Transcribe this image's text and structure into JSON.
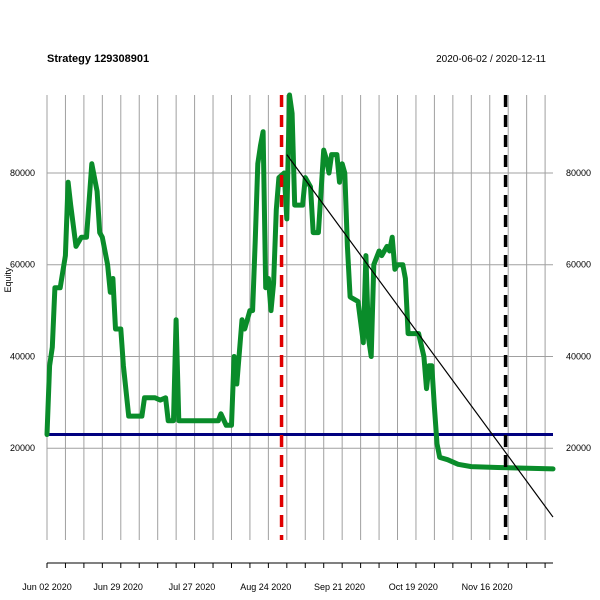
{
  "chart_data": {
    "type": "line",
    "title": "Strategy 129308901",
    "date_range_label": "2020-06-02 / 2020-12-11",
    "ylabel": "Equity",
    "xlabel": "",
    "x_range": [
      "2020-06-02",
      "2020-12-11"
    ],
    "ylim": [
      0,
      97000
    ],
    "y_ticks": [
      20000,
      40000,
      60000,
      80000
    ],
    "x_tick_labels": [
      {
        "date": "2020-06-02",
        "label": "Jun 02 2020"
      },
      {
        "date": "2020-06-29",
        "label": "Jun 29 2020"
      },
      {
        "date": "2020-07-27",
        "label": "Jul 27 2020"
      },
      {
        "date": "2020-08-24",
        "label": "Aug 24 2020"
      },
      {
        "date": "2020-09-21",
        "label": "Sep 21 2020"
      },
      {
        "date": "2020-10-19",
        "label": "Oct 19 2020"
      },
      {
        "date": "2020-11-16",
        "label": "Nov 16 2020"
      }
    ],
    "grid": true,
    "colors": {
      "equity": "#0a8c2a",
      "baseline": "#00007f",
      "trend": "#000000",
      "marker_start": "#e00000",
      "marker_end": "#000000",
      "grid": "#a0a0a0"
    },
    "baseline_value": 23000,
    "trend_line": [
      {
        "date": "2020-09-01",
        "value": 84000
      },
      {
        "date": "2020-12-11",
        "value": 5000
      }
    ],
    "vertical_markers": [
      {
        "date": "2020-08-30",
        "style": "dashed",
        "color": "#e00000"
      },
      {
        "date": "2020-11-23",
        "style": "dashed",
        "color": "#000000"
      }
    ],
    "series": [
      {
        "values": [
          [
            "2020-06-02",
            23000
          ],
          [
            "2020-06-03",
            38000
          ],
          [
            "2020-06-04",
            42000
          ],
          [
            "2020-06-05",
            55000
          ],
          [
            "2020-06-07",
            55000
          ],
          [
            "2020-06-09",
            62000
          ],
          [
            "2020-06-10",
            78000
          ],
          [
            "2020-06-11",
            73000
          ],
          [
            "2020-06-13",
            64000
          ],
          [
            "2020-06-15",
            66000
          ],
          [
            "2020-06-17",
            66000
          ],
          [
            "2020-06-19",
            82000
          ],
          [
            "2020-06-21",
            76000
          ],
          [
            "2020-06-22",
            67000
          ],
          [
            "2020-06-23",
            66000
          ],
          [
            "2020-06-25",
            60000
          ],
          [
            "2020-06-26",
            54000
          ],
          [
            "2020-06-27",
            57000
          ],
          [
            "2020-06-28",
            46000
          ],
          [
            "2020-06-30",
            46000
          ],
          [
            "2020-07-01",
            38000
          ],
          [
            "2020-07-03",
            27000
          ],
          [
            "2020-07-08",
            27000
          ],
          [
            "2020-07-09",
            31000
          ],
          [
            "2020-07-13",
            31000
          ],
          [
            "2020-07-15",
            30500
          ],
          [
            "2020-07-17",
            31000
          ],
          [
            "2020-07-18",
            26000
          ],
          [
            "2020-07-20",
            26000
          ],
          [
            "2020-07-21",
            48000
          ],
          [
            "2020-07-22",
            26000
          ],
          [
            "2020-07-30",
            26000
          ],
          [
            "2020-08-06",
            26000
          ],
          [
            "2020-08-07",
            27500
          ],
          [
            "2020-08-09",
            25000
          ],
          [
            "2020-08-11",
            25000
          ],
          [
            "2020-08-12",
            40000
          ],
          [
            "2020-08-13",
            34000
          ],
          [
            "2020-08-15",
            48000
          ],
          [
            "2020-08-16",
            46000
          ],
          [
            "2020-08-18",
            50000
          ],
          [
            "2020-08-19",
            50000
          ],
          [
            "2020-08-20",
            65000
          ],
          [
            "2020-08-21",
            82000
          ],
          [
            "2020-08-22",
            86000
          ],
          [
            "2020-08-23",
            89000
          ],
          [
            "2020-08-24",
            55000
          ],
          [
            "2020-08-25",
            57000
          ],
          [
            "2020-08-26",
            50000
          ],
          [
            "2020-08-27",
            56000
          ],
          [
            "2020-08-28",
            72000
          ],
          [
            "2020-08-29",
            79000
          ],
          [
            "2020-08-31",
            80000
          ],
          [
            "2020-09-01",
            70000
          ],
          [
            "2020-09-02",
            97000
          ],
          [
            "2020-09-03",
            93000
          ],
          [
            "2020-09-04",
            73000
          ],
          [
            "2020-09-07",
            73000
          ],
          [
            "2020-09-08",
            79000
          ],
          [
            "2020-09-10",
            77000
          ],
          [
            "2020-09-11",
            67000
          ],
          [
            "2020-09-13",
            67000
          ],
          [
            "2020-09-15",
            85000
          ],
          [
            "2020-09-16",
            83000
          ],
          [
            "2020-09-17",
            80000
          ],
          [
            "2020-09-18",
            84000
          ],
          [
            "2020-09-20",
            84000
          ],
          [
            "2020-09-21",
            78000
          ],
          [
            "2020-09-22",
            82000
          ],
          [
            "2020-09-23",
            80000
          ],
          [
            "2020-09-24",
            64000
          ],
          [
            "2020-09-25",
            53000
          ],
          [
            "2020-09-28",
            52000
          ],
          [
            "2020-09-30",
            43000
          ],
          [
            "2020-10-01",
            62000
          ],
          [
            "2020-10-02",
            44000
          ],
          [
            "2020-10-03",
            40000
          ],
          [
            "2020-10-04",
            60000
          ],
          [
            "2020-10-06",
            63000
          ],
          [
            "2020-10-07",
            62000
          ],
          [
            "2020-10-09",
            64000
          ],
          [
            "2020-10-10",
            63000
          ],
          [
            "2020-10-11",
            66000
          ],
          [
            "2020-10-12",
            59000
          ],
          [
            "2020-10-13",
            60000
          ],
          [
            "2020-10-15",
            60000
          ],
          [
            "2020-10-16",
            57000
          ],
          [
            "2020-10-17",
            45000
          ],
          [
            "2020-10-20",
            45000
          ],
          [
            "2020-10-21",
            45000
          ],
          [
            "2020-10-23",
            40000
          ],
          [
            "2020-10-24",
            33000
          ],
          [
            "2020-10-25",
            38000
          ],
          [
            "2020-10-26",
            38000
          ],
          [
            "2020-10-27",
            29000
          ],
          [
            "2020-10-28",
            21000
          ],
          [
            "2020-10-29",
            18000
          ],
          [
            "2020-11-01",
            17500
          ],
          [
            "2020-11-05",
            16500
          ],
          [
            "2020-11-10",
            16000
          ],
          [
            "2020-11-20",
            15800
          ],
          [
            "2020-12-11",
            15500
          ]
        ]
      }
    ]
  }
}
